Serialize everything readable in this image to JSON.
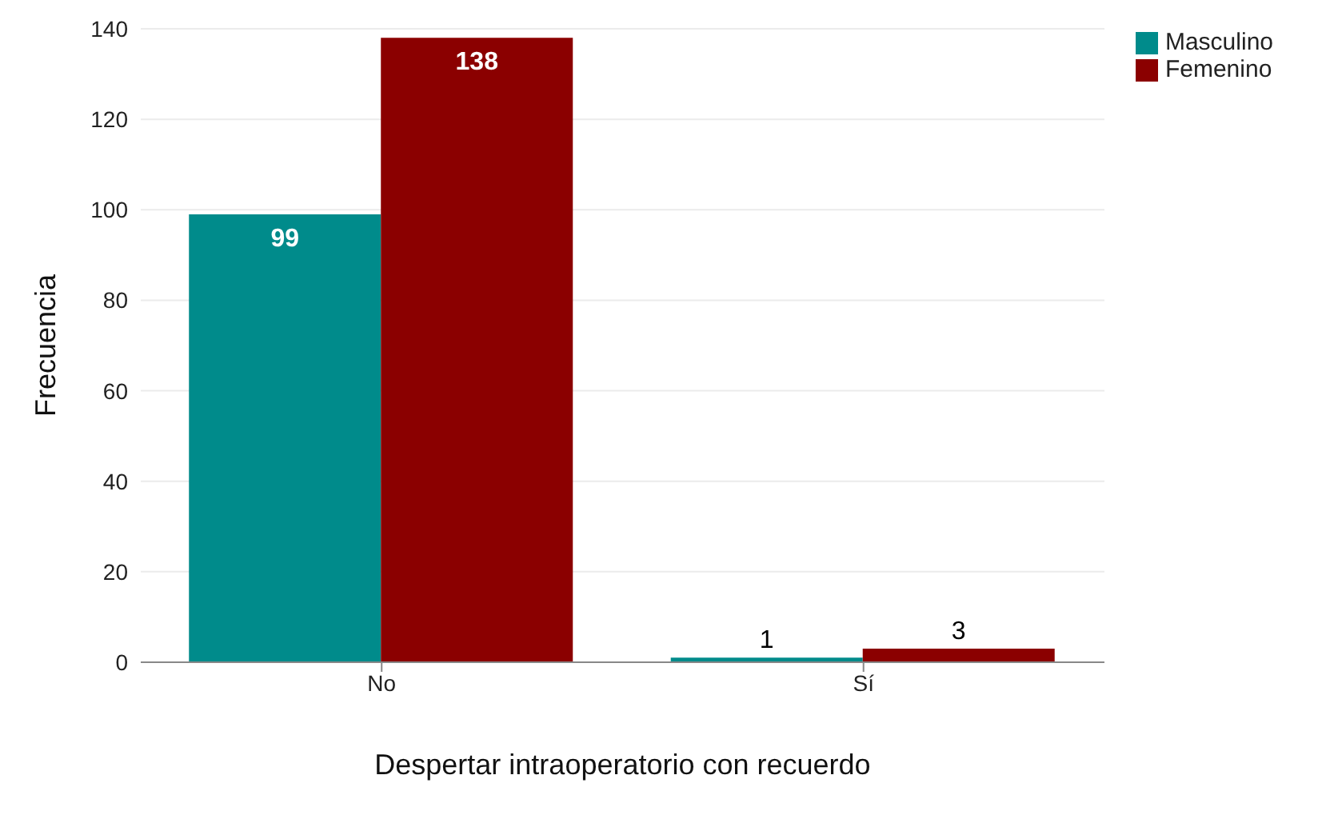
{
  "chart_data": {
    "type": "bar",
    "xlabel": "Despertar intraoperatorio con recuerdo",
    "ylabel": "Frecuencia",
    "categories": [
      "No",
      "Sí"
    ],
    "series": [
      {
        "name": "Masculino",
        "color": "#008b8b",
        "values": [
          99,
          1
        ]
      },
      {
        "name": "Femenino",
        "color": "#8b0000",
        "values": [
          138,
          3
        ]
      }
    ],
    "ylim": [
      0,
      140
    ],
    "yticks": [
      0,
      20,
      40,
      60,
      80,
      100,
      120,
      140
    ],
    "grid": "y",
    "legend": "top right",
    "data_labels": true
  }
}
